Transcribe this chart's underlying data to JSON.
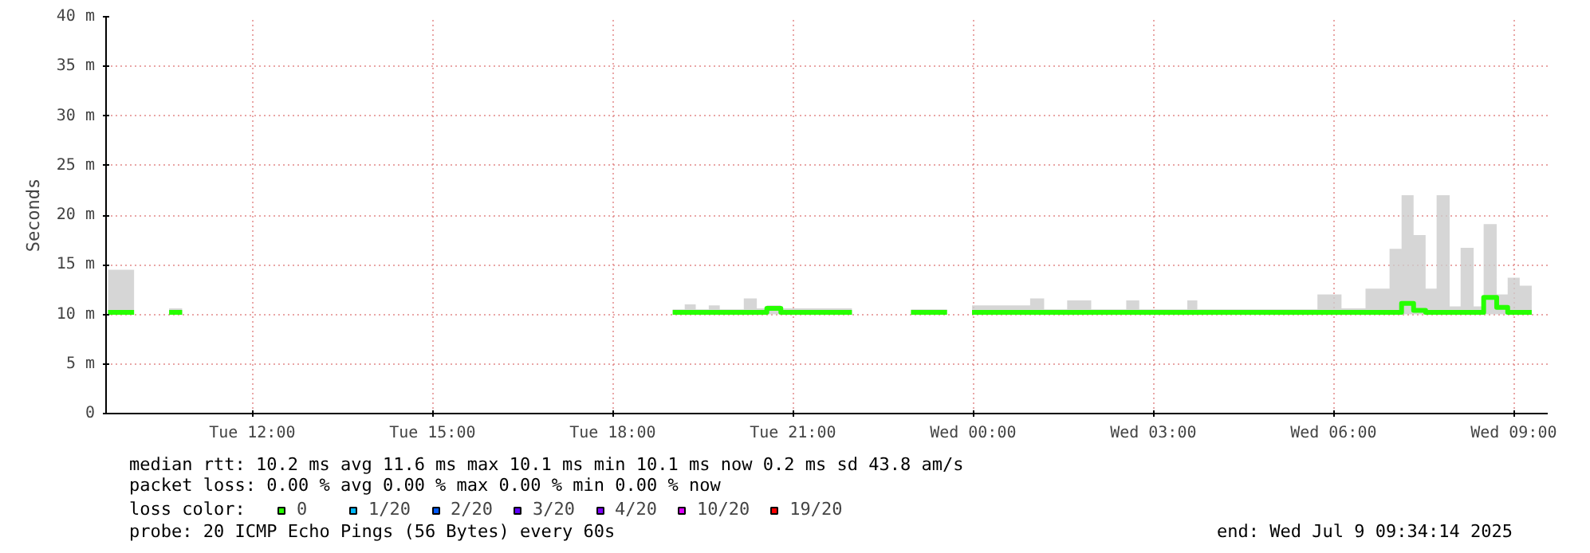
{
  "chart_data": {
    "type": "step",
    "ylabel": "Seconds",
    "x": [
      "2025-07-08T23:59",
      "2025-07-09T00:57",
      "2025-07-09T01:11",
      "2025-07-09T01:34",
      "2025-07-09T01:58",
      "2025-07-09T02:33",
      "2025-07-09T02:46",
      "2025-07-09T03:34",
      "2025-07-09T03:44",
      "2025-07-09T05:44",
      "2025-07-09T06:08",
      "2025-07-09T06:32",
      "2025-07-09T06:56",
      "2025-07-09T07:08",
      "2025-07-09T07:20",
      "2025-07-09T07:32",
      "2025-07-09T07:43",
      "2025-07-09T07:56",
      "2025-07-09T08:07",
      "2025-07-09T08:20",
      "2025-07-09T08:30",
      "2025-07-09T08:43",
      "2025-07-09T08:54",
      "2025-07-09T09:06",
      "2025-07-09T09:18"
    ],
    "series": [
      {
        "name": "0",
        "color": "#26ff00",
        "values": [
          10.2,
          10.2,
          10.2,
          10.2,
          10.2,
          10.2,
          10.2,
          10.2,
          10.2,
          10.2,
          10.2,
          10.2,
          10.2,
          11.1,
          10.4,
          10.2,
          10.2,
          10.2,
          10.2,
          10.2,
          11.7,
          10.7,
          10.2,
          10.2,
          10.2
        ],
        "lower": [
          10.0,
          10.0,
          10.0,
          10.0,
          10.0,
          10.0,
          10.0,
          10.0,
          10.0,
          10.0,
          10.0,
          10.0,
          10.0,
          10.0,
          10.0,
          10.0,
          10.0,
          10.0,
          10.0,
          10.0,
          10.0,
          10.0,
          10.0,
          10.0,
          10.0
        ],
        "upper": [
          10.9,
          11.6,
          10.5,
          11.4,
          10.5,
          11.4,
          10.5,
          11.4,
          10.5,
          12.0,
          10.6,
          12.6,
          16.6,
          22.0,
          18.0,
          12.6,
          22.0,
          10.8,
          16.7,
          10.8,
          19.1,
          12.0,
          13.7,
          12.9,
          12.9
        ]
      },
      {
        "color": "#26ff00",
        "x": [
          "2025-07-08T09:36",
          "2025-07-08T10:02"
        ],
        "values": [
          10.2,
          10.2
        ],
        "lower": [
          10.0,
          10.0
        ],
        "upper": [
          14.5,
          14.5
        ]
      },
      {
        "color": "#26ff00",
        "x": [
          "2025-07-08T10:37",
          "2025-07-08T10:50"
        ],
        "values": [
          10.2,
          10.2
        ],
        "lower": [
          10.0,
          10.0
        ],
        "upper": [
          10.6,
          10.6
        ]
      },
      {
        "color": "#26ff00",
        "x": [
          "2025-07-08T19:00",
          "2025-07-08T19:12",
          "2025-07-08T19:23",
          "2025-07-08T19:36",
          "2025-07-08T19:47",
          "2025-07-08T20:11",
          "2025-07-08T20:24",
          "2025-07-08T20:34",
          "2025-07-08T20:48",
          "2025-07-08T21:59"
        ],
        "values": [
          10.2,
          10.2,
          10.2,
          10.2,
          10.2,
          10.2,
          10.2,
          10.6,
          10.2,
          10.2
        ],
        "lower": [
          10.0,
          10.0,
          10.0,
          10.0,
          10.0,
          10.0,
          10.0,
          10.0,
          10.0,
          10.0
        ],
        "upper": [
          10.5,
          11.0,
          10.5,
          10.9,
          10.5,
          11.6,
          10.6,
          10.9,
          10.6,
          10.6
        ]
      },
      {
        "color": "#26ff00",
        "x": [
          "2025-07-08T22:58",
          "2025-07-08T23:34"
        ],
        "values": [
          10.2,
          10.2
        ],
        "lower": [
          10.0,
          10.0
        ],
        "upper": [
          10.5,
          10.5
        ]
      },
      {
        "name": "1/20",
        "color": "#00b8ff",
        "values": [
          null,
          null,
          null,
          null,
          null,
          null,
          null,
          null,
          null,
          null,
          null,
          null,
          null,
          null,
          null,
          null,
          null,
          null,
          null,
          null,
          null,
          null,
          null,
          null,
          null
        ]
      },
      {
        "name": "2/20",
        "color": "#0059ff",
        "values": [
          null,
          null,
          null,
          null,
          null,
          null,
          null,
          null,
          null,
          null,
          null,
          null,
          null,
          null,
          null,
          null,
          null,
          null,
          null,
          null,
          null,
          null,
          null,
          null,
          null
        ]
      },
      {
        "name": "3/20",
        "color": "#5e00ff",
        "values": [
          null,
          null,
          null,
          null,
          null,
          null,
          null,
          null,
          null,
          null,
          null,
          null,
          null,
          null,
          null,
          null,
          null,
          null,
          null,
          null,
          null,
          null,
          null,
          null,
          null
        ]
      },
      {
        "name": "4/20",
        "color": "#7e00ff",
        "values": [
          null,
          null,
          null,
          null,
          null,
          null,
          null,
          null,
          null,
          null,
          null,
          null,
          null,
          null,
          null,
          null,
          null,
          null,
          null,
          null,
          null,
          null,
          null,
          null,
          null
        ]
      },
      {
        "name": "10/20",
        "color": "#dd00ff",
        "values": [
          null,
          null,
          null,
          null,
          null,
          null,
          null,
          null,
          null,
          null,
          null,
          null,
          null,
          null,
          null,
          null,
          null,
          null,
          null,
          null,
          null,
          null,
          null,
          null,
          null
        ]
      },
      {
        "name": "19/20",
        "color": "#ff0000",
        "values": [
          null,
          null,
          null,
          null,
          null,
          null,
          null,
          null,
          null,
          null,
          null,
          null,
          null,
          null,
          null,
          null,
          null,
          null,
          null,
          null,
          null,
          null,
          null,
          null,
          null
        ]
      }
    ],
    "xlim": [
      "2025-07-08T09:34",
      "2025-07-09T09:34"
    ],
    "xticks": [
      {
        "value": "2025-07-08T12:00",
        "label": "Tue 12:00"
      },
      {
        "value": "2025-07-08T15:00",
        "label": "Tue 15:00"
      },
      {
        "value": "2025-07-08T18:00",
        "label": "Tue 18:00"
      },
      {
        "value": "2025-07-08T21:00",
        "label": "Tue 21:00"
      },
      {
        "value": "2025-07-09T00:00",
        "label": "Wed 00:00"
      },
      {
        "value": "2025-07-09T03:00",
        "label": "Wed 03:00"
      },
      {
        "value": "2025-07-09T06:00",
        "label": "Wed 06:00"
      },
      {
        "value": "2025-07-09T09:00",
        "label": "Wed 09:00"
      }
    ],
    "ylim": [
      0,
      40
    ],
    "yticks": [
      0,
      {
        "value": 5,
        "label": "5 m"
      },
      {
        "value": 10,
        "label": "10 m"
      },
      {
        "value": 15,
        "label": "15 m"
      },
      {
        "value": 20,
        "label": "20 m"
      },
      {
        "value": 25,
        "label": "25 m"
      },
      {
        "value": 30,
        "label": "30 m"
      },
      {
        "value": 35,
        "label": "35 m"
      },
      {
        "value": 40,
        "label": "40 m"
      }
    ],
    "grid": true,
    "legend": "bottom",
    "annotations": [
      "median rtt:  10.2 ms avg  11.6 ms max  10.1 ms min  10.1 ms now  0.2 ms sd  43.8   am/s",
      "packet loss: 0.00 % avg  0.00 % max  0.00 % min  0.00 % now",
      "loss color:",
      "probe:       20 ICMP Echo Pings (56 Bytes) every 60s",
      "end: Wed Jul  9 09:34:14 2025"
    ]
  }
}
